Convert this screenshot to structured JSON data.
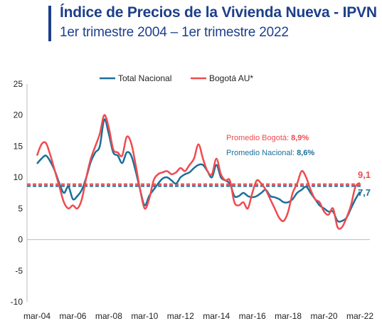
{
  "header": {
    "title": "Índice de Precios de la Vivienda Nueva - IPVN",
    "subtitle": "1er trimestre 2004 – 1er trimestre 2022"
  },
  "chart_data": {
    "type": "line",
    "ylim": [
      -10,
      25
    ],
    "yticks": [
      25,
      20,
      15,
      10,
      5,
      0,
      -5,
      -10
    ],
    "xlim": [
      2004,
      2022
    ],
    "xticks": [
      {
        "x": 2004,
        "label": "mar-04"
      },
      {
        "x": 2006,
        "label": "mar-06"
      },
      {
        "x": 2008,
        "label": "mar-08"
      },
      {
        "x": 2010,
        "label": "mar-10"
      },
      {
        "x": 2012,
        "label": "mar-12"
      },
      {
        "x": 2014,
        "label": "mar-14"
      },
      {
        "x": 2016,
        "label": "mar-16"
      },
      {
        "x": 2018,
        "label": "mar-18"
      },
      {
        "x": 2020,
        "label": "mar-20"
      },
      {
        "x": 2022,
        "label": "mar-22"
      }
    ],
    "legend_position": "top-center",
    "series": [
      {
        "name": "Total Nacional",
        "color": "#1a6f9a",
        "points": [
          [
            2004.0,
            12.2
          ],
          [
            2004.25,
            13.0
          ],
          [
            2004.5,
            13.5
          ],
          [
            2004.75,
            12.5
          ],
          [
            2005.0,
            11.0
          ],
          [
            2005.25,
            9.0
          ],
          [
            2005.5,
            7.5
          ],
          [
            2005.75,
            8.5
          ],
          [
            2006.0,
            6.5
          ],
          [
            2006.25,
            7.0
          ],
          [
            2006.5,
            8.0
          ],
          [
            2006.75,
            10.0
          ],
          [
            2007.0,
            12.5
          ],
          [
            2007.25,
            14.0
          ],
          [
            2007.5,
            15.0
          ],
          [
            2007.75,
            19.3
          ],
          [
            2008.0,
            17.0
          ],
          [
            2008.25,
            14.0
          ],
          [
            2008.5,
            13.5
          ],
          [
            2008.75,
            12.3
          ],
          [
            2009.0,
            14.0
          ],
          [
            2009.25,
            13.5
          ],
          [
            2009.5,
            11.0
          ],
          [
            2009.75,
            8.0
          ],
          [
            2010.0,
            5.5
          ],
          [
            2010.25,
            7.0
          ],
          [
            2010.5,
            8.0
          ],
          [
            2010.75,
            9.0
          ],
          [
            2011.0,
            9.8
          ],
          [
            2011.25,
            10.0
          ],
          [
            2011.5,
            9.5
          ],
          [
            2011.75,
            9.0
          ],
          [
            2012.0,
            10.0
          ],
          [
            2012.25,
            10.5
          ],
          [
            2012.5,
            10.8
          ],
          [
            2012.75,
            11.5
          ],
          [
            2013.0,
            12.0
          ],
          [
            2013.25,
            12.0
          ],
          [
            2013.5,
            11.0
          ],
          [
            2013.75,
            10.0
          ],
          [
            2014.0,
            12.0
          ],
          [
            2014.25,
            10.0
          ],
          [
            2014.5,
            9.5
          ],
          [
            2014.75,
            9.0
          ],
          [
            2015.0,
            7.0
          ],
          [
            2015.25,
            7.0
          ],
          [
            2015.5,
            7.5
          ],
          [
            2015.75,
            7.0
          ],
          [
            2016.0,
            6.8
          ],
          [
            2016.25,
            7.0
          ],
          [
            2016.5,
            7.5
          ],
          [
            2016.75,
            8.0
          ],
          [
            2017.0,
            7.0
          ],
          [
            2017.25,
            6.8
          ],
          [
            2017.5,
            6.5
          ],
          [
            2017.75,
            6.0
          ],
          [
            2018.0,
            6.0
          ],
          [
            2018.25,
            6.5
          ],
          [
            2018.5,
            7.5
          ],
          [
            2018.75,
            8.0
          ],
          [
            2019.0,
            8.5
          ],
          [
            2019.25,
            7.5
          ],
          [
            2019.5,
            6.5
          ],
          [
            2019.75,
            5.5
          ],
          [
            2020.0,
            5.0
          ],
          [
            2020.25,
            4.5
          ],
          [
            2020.5,
            4.5
          ],
          [
            2020.75,
            3.0
          ],
          [
            2021.0,
            3.0
          ],
          [
            2021.25,
            3.5
          ],
          [
            2021.5,
            5.0
          ],
          [
            2021.75,
            6.5
          ],
          [
            2022.0,
            7.7
          ]
        ]
      },
      {
        "name": "Bogotá AU*",
        "color": "#ee4b50",
        "points": [
          [
            2004.0,
            13.5
          ],
          [
            2004.25,
            15.3
          ],
          [
            2004.5,
            15.5
          ],
          [
            2004.75,
            13.5
          ],
          [
            2005.0,
            11.0
          ],
          [
            2005.25,
            8.5
          ],
          [
            2005.5,
            6.0
          ],
          [
            2005.75,
            5.0
          ],
          [
            2006.0,
            5.5
          ],
          [
            2006.25,
            5.0
          ],
          [
            2006.5,
            6.5
          ],
          [
            2006.75,
            10.0
          ],
          [
            2007.0,
            13.0
          ],
          [
            2007.25,
            15.0
          ],
          [
            2007.5,
            17.0
          ],
          [
            2007.75,
            20.0
          ],
          [
            2008.0,
            18.0
          ],
          [
            2008.25,
            14.5
          ],
          [
            2008.5,
            14.0
          ],
          [
            2008.75,
            13.5
          ],
          [
            2009.0,
            16.5
          ],
          [
            2009.25,
            15.5
          ],
          [
            2009.5,
            12.0
          ],
          [
            2009.75,
            8.0
          ],
          [
            2010.0,
            5.0
          ],
          [
            2010.25,
            6.5
          ],
          [
            2010.5,
            9.5
          ],
          [
            2010.75,
            10.5
          ],
          [
            2011.0,
            10.8
          ],
          [
            2011.25,
            11.0
          ],
          [
            2011.5,
            10.5
          ],
          [
            2011.75,
            10.8
          ],
          [
            2012.0,
            11.5
          ],
          [
            2012.25,
            11.0
          ],
          [
            2012.5,
            12.0
          ],
          [
            2012.75,
            13.0
          ],
          [
            2013.0,
            15.3
          ],
          [
            2013.25,
            13.0
          ],
          [
            2013.5,
            11.0
          ],
          [
            2013.75,
            10.5
          ],
          [
            2014.0,
            13.0
          ],
          [
            2014.25,
            10.5
          ],
          [
            2014.5,
            9.5
          ],
          [
            2014.75,
            9.5
          ],
          [
            2015.0,
            6.0
          ],
          [
            2015.25,
            5.5
          ],
          [
            2015.5,
            6.0
          ],
          [
            2015.75,
            5.0
          ],
          [
            2016.0,
            7.5
          ],
          [
            2016.25,
            9.5
          ],
          [
            2016.5,
            9.0
          ],
          [
            2016.75,
            8.0
          ],
          [
            2017.0,
            6.5
          ],
          [
            2017.25,
            5.0
          ],
          [
            2017.5,
            3.5
          ],
          [
            2017.75,
            3.0
          ],
          [
            2018.0,
            4.5
          ],
          [
            2018.25,
            7.5
          ],
          [
            2018.5,
            9.0
          ],
          [
            2018.75,
            11.0
          ],
          [
            2019.0,
            10.0
          ],
          [
            2019.25,
            8.0
          ],
          [
            2019.5,
            6.5
          ],
          [
            2019.75,
            6.0
          ],
          [
            2020.0,
            4.5
          ],
          [
            2020.25,
            4.0
          ],
          [
            2020.5,
            5.0
          ],
          [
            2020.75,
            2.0
          ],
          [
            2021.0,
            2.0
          ],
          [
            2021.25,
            3.5
          ],
          [
            2021.5,
            5.5
          ],
          [
            2021.75,
            8.5
          ],
          [
            2022.0,
            9.1
          ]
        ]
      }
    ],
    "reference_lines": [
      {
        "label": "Promedio Bogotá:",
        "value": 8.9,
        "value_label": "8,9%",
        "color": "#ee4b50"
      },
      {
        "label": "Promedio Nacional:",
        "value": 8.6,
        "value_label": "8,6%",
        "color": "#1a6f9a"
      }
    ],
    "end_labels": [
      {
        "text": "9,1",
        "value": 9.1,
        "color": "#ee4b50"
      },
      {
        "text": "7,7",
        "value": 7.7,
        "color": "#1a6f9a"
      }
    ]
  }
}
